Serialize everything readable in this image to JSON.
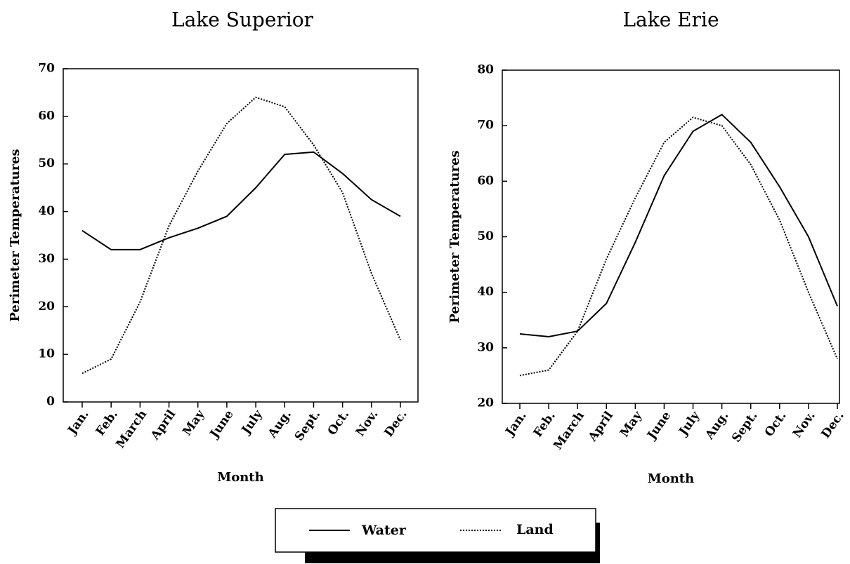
{
  "chart_data": [
    {
      "type": "line",
      "title": "Lake Superior",
      "xlabel": "Month",
      "ylabel": "Perimeter Temperatures",
      "categories": [
        "Jan.",
        "Feb.",
        "March",
        "April",
        "May",
        "June",
        "July",
        "Aug.",
        "Sept.",
        "Oct.",
        "Nov.",
        "Dec."
      ],
      "series": [
        {
          "name": "Water",
          "color": "#000000",
          "line_style": "solid",
          "values": [
            36,
            32,
            32,
            34.5,
            36.5,
            39,
            45,
            52,
            52.5,
            48,
            42.5,
            39
          ]
        },
        {
          "name": "Land",
          "color": "#000000",
          "line_style": "dotted",
          "values": [
            6,
            9,
            21,
            37,
            48.5,
            58.5,
            64,
            62,
            54,
            44,
            27,
            13
          ]
        }
      ],
      "ylim": [
        0,
        70
      ],
      "yticks": [
        0,
        10,
        20,
        30,
        40,
        50,
        60,
        70
      ]
    },
    {
      "type": "line",
      "title": "Lake Erie",
      "xlabel": "Month",
      "ylabel": "Perimeter Temperatures",
      "categories": [
        "Jan.",
        "Feb.",
        "March",
        "April",
        "May",
        "June",
        "July",
        "Aug.",
        "Sept.",
        "Oct.",
        "Nov.",
        "Dec."
      ],
      "series": [
        {
          "name": "Water",
          "color": "#000000",
          "line_style": "solid",
          "values": [
            32.5,
            32,
            33,
            38,
            49,
            61,
            69,
            72,
            67,
            59,
            50,
            37.5
          ]
        },
        {
          "name": "Land",
          "color": "#000000",
          "line_style": "dotted",
          "values": [
            25,
            26,
            33,
            46,
            57,
            67,
            71.5,
            70,
            63,
            53,
            40,
            28
          ]
        }
      ],
      "ylim": [
        20,
        80
      ],
      "yticks": [
        20,
        30,
        40,
        50,
        60,
        70,
        80
      ]
    }
  ]
}
